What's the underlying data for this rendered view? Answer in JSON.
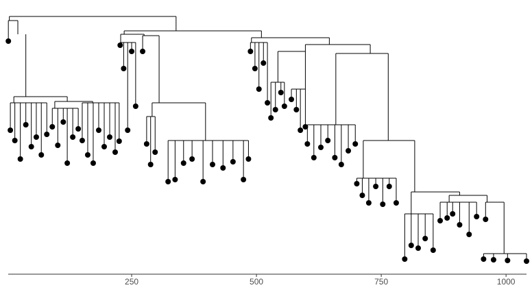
{
  "chart_data": {
    "type": "dendrogram",
    "color": "#000000",
    "xlim": [
      0,
      1041
    ],
    "ylim": [
      0,
      363
    ],
    "xticks": [
      250,
      500,
      750,
      1000
    ],
    "nodes": {
      "x": [
        172,
        5,
        339,
        3,
        22,
        38,
        14,
        121,
        7,
        16,
        27,
        38,
        49,
        59,
        69,
        80,
        96,
        172,
        91,
        102,
        113,
        121,
        132,
        143,
        151,
        162,
        173,
        184,
        195,
        206,
        217,
        225,
        235,
        510,
        228,
        275,
        227,
        234,
        242,
        250,
        258,
        272,
        305,
        291,
        398,
        280,
        288,
        297,
        323,
        337,
        354,
        371,
        393,
        412,
        433,
        453,
        474,
        484,
        490,
        646,
        488,
        497,
        505,
        514,
        522,
        598,
        728,
        543,
        598,
        529,
        538,
        549,
        556,
        570,
        580,
        588,
        598,
        659,
        764,
        602,
        615,
        629,
        643,
        657,
        670,
        684,
        698,
        714,
        817,
        701,
        712,
        725,
        739,
        753,
        766,
        780,
        810,
        907,
        797,
        810,
        824,
        838,
        854,
        886,
        962,
        868,
        882,
        893,
        907,
        926,
        941,
        959,
        996,
        955,
        975,
        1003,
        1041
      ],
      "y": [
        361,
        355,
        340,
        325,
        335,
        244,
        235,
        237,
        195,
        180,
        153,
        203,
        171,
        185,
        159,
        189,
        227,
        235,
        200,
        173,
        207,
        147,
        185,
        197,
        180,
        159,
        147,
        195,
        171,
        185,
        163,
        179,
        335,
        330,
        323,
        333,
        319,
        285,
        195,
        310,
        230,
        310,
        235,
        215,
        180,
        175,
        145,
        163,
        120,
        123,
        147,
        153,
        120,
        145,
        140,
        149,
        123,
        153,
        323,
        320,
        310,
        285,
        255,
        293,
        235,
        310,
        307,
        265,
        255,
        213,
        225,
        250,
        230,
        240,
        225,
        195,
        200,
        203,
        180,
        175,
        155,
        170,
        180,
        155,
        145,
        165,
        175,
        125,
        105,
        117,
        100,
        89,
        113,
        87,
        113,
        89,
        73,
        100,
        7,
        27,
        23,
        37,
        20,
        90,
        90,
        63,
        67,
        73,
        57,
        43,
        69,
        65,
        15,
        7,
        6,
        5,
        4
      ],
      "parent": [
        null,
        0,
        0,
        1,
        1,
        4,
        5,
        5,
        6,
        6,
        6,
        6,
        6,
        6,
        6,
        6,
        7,
        7,
        16,
        16,
        16,
        16,
        16,
        16,
        17,
        17,
        17,
        17,
        17,
        17,
        17,
        17,
        2,
        2,
        32,
        32,
        34,
        34,
        34,
        34,
        34,
        35,
        35,
        42,
        42,
        43,
        43,
        43,
        44,
        44,
        44,
        44,
        44,
        44,
        44,
        44,
        44,
        44,
        33,
        33,
        58,
        58,
        58,
        58,
        58,
        59,
        59,
        65,
        65,
        67,
        67,
        67,
        67,
        68,
        68,
        68,
        68,
        66,
        66,
        77,
        77,
        77,
        77,
        77,
        77,
        77,
        77,
        78,
        78,
        87,
        87,
        87,
        87,
        87,
        87,
        87,
        88,
        88,
        96,
        96,
        96,
        96,
        96,
        97,
        97,
        103,
        103,
        103,
        103,
        103,
        103,
        104,
        104,
        112,
        112,
        112,
        112
      ]
    }
  }
}
